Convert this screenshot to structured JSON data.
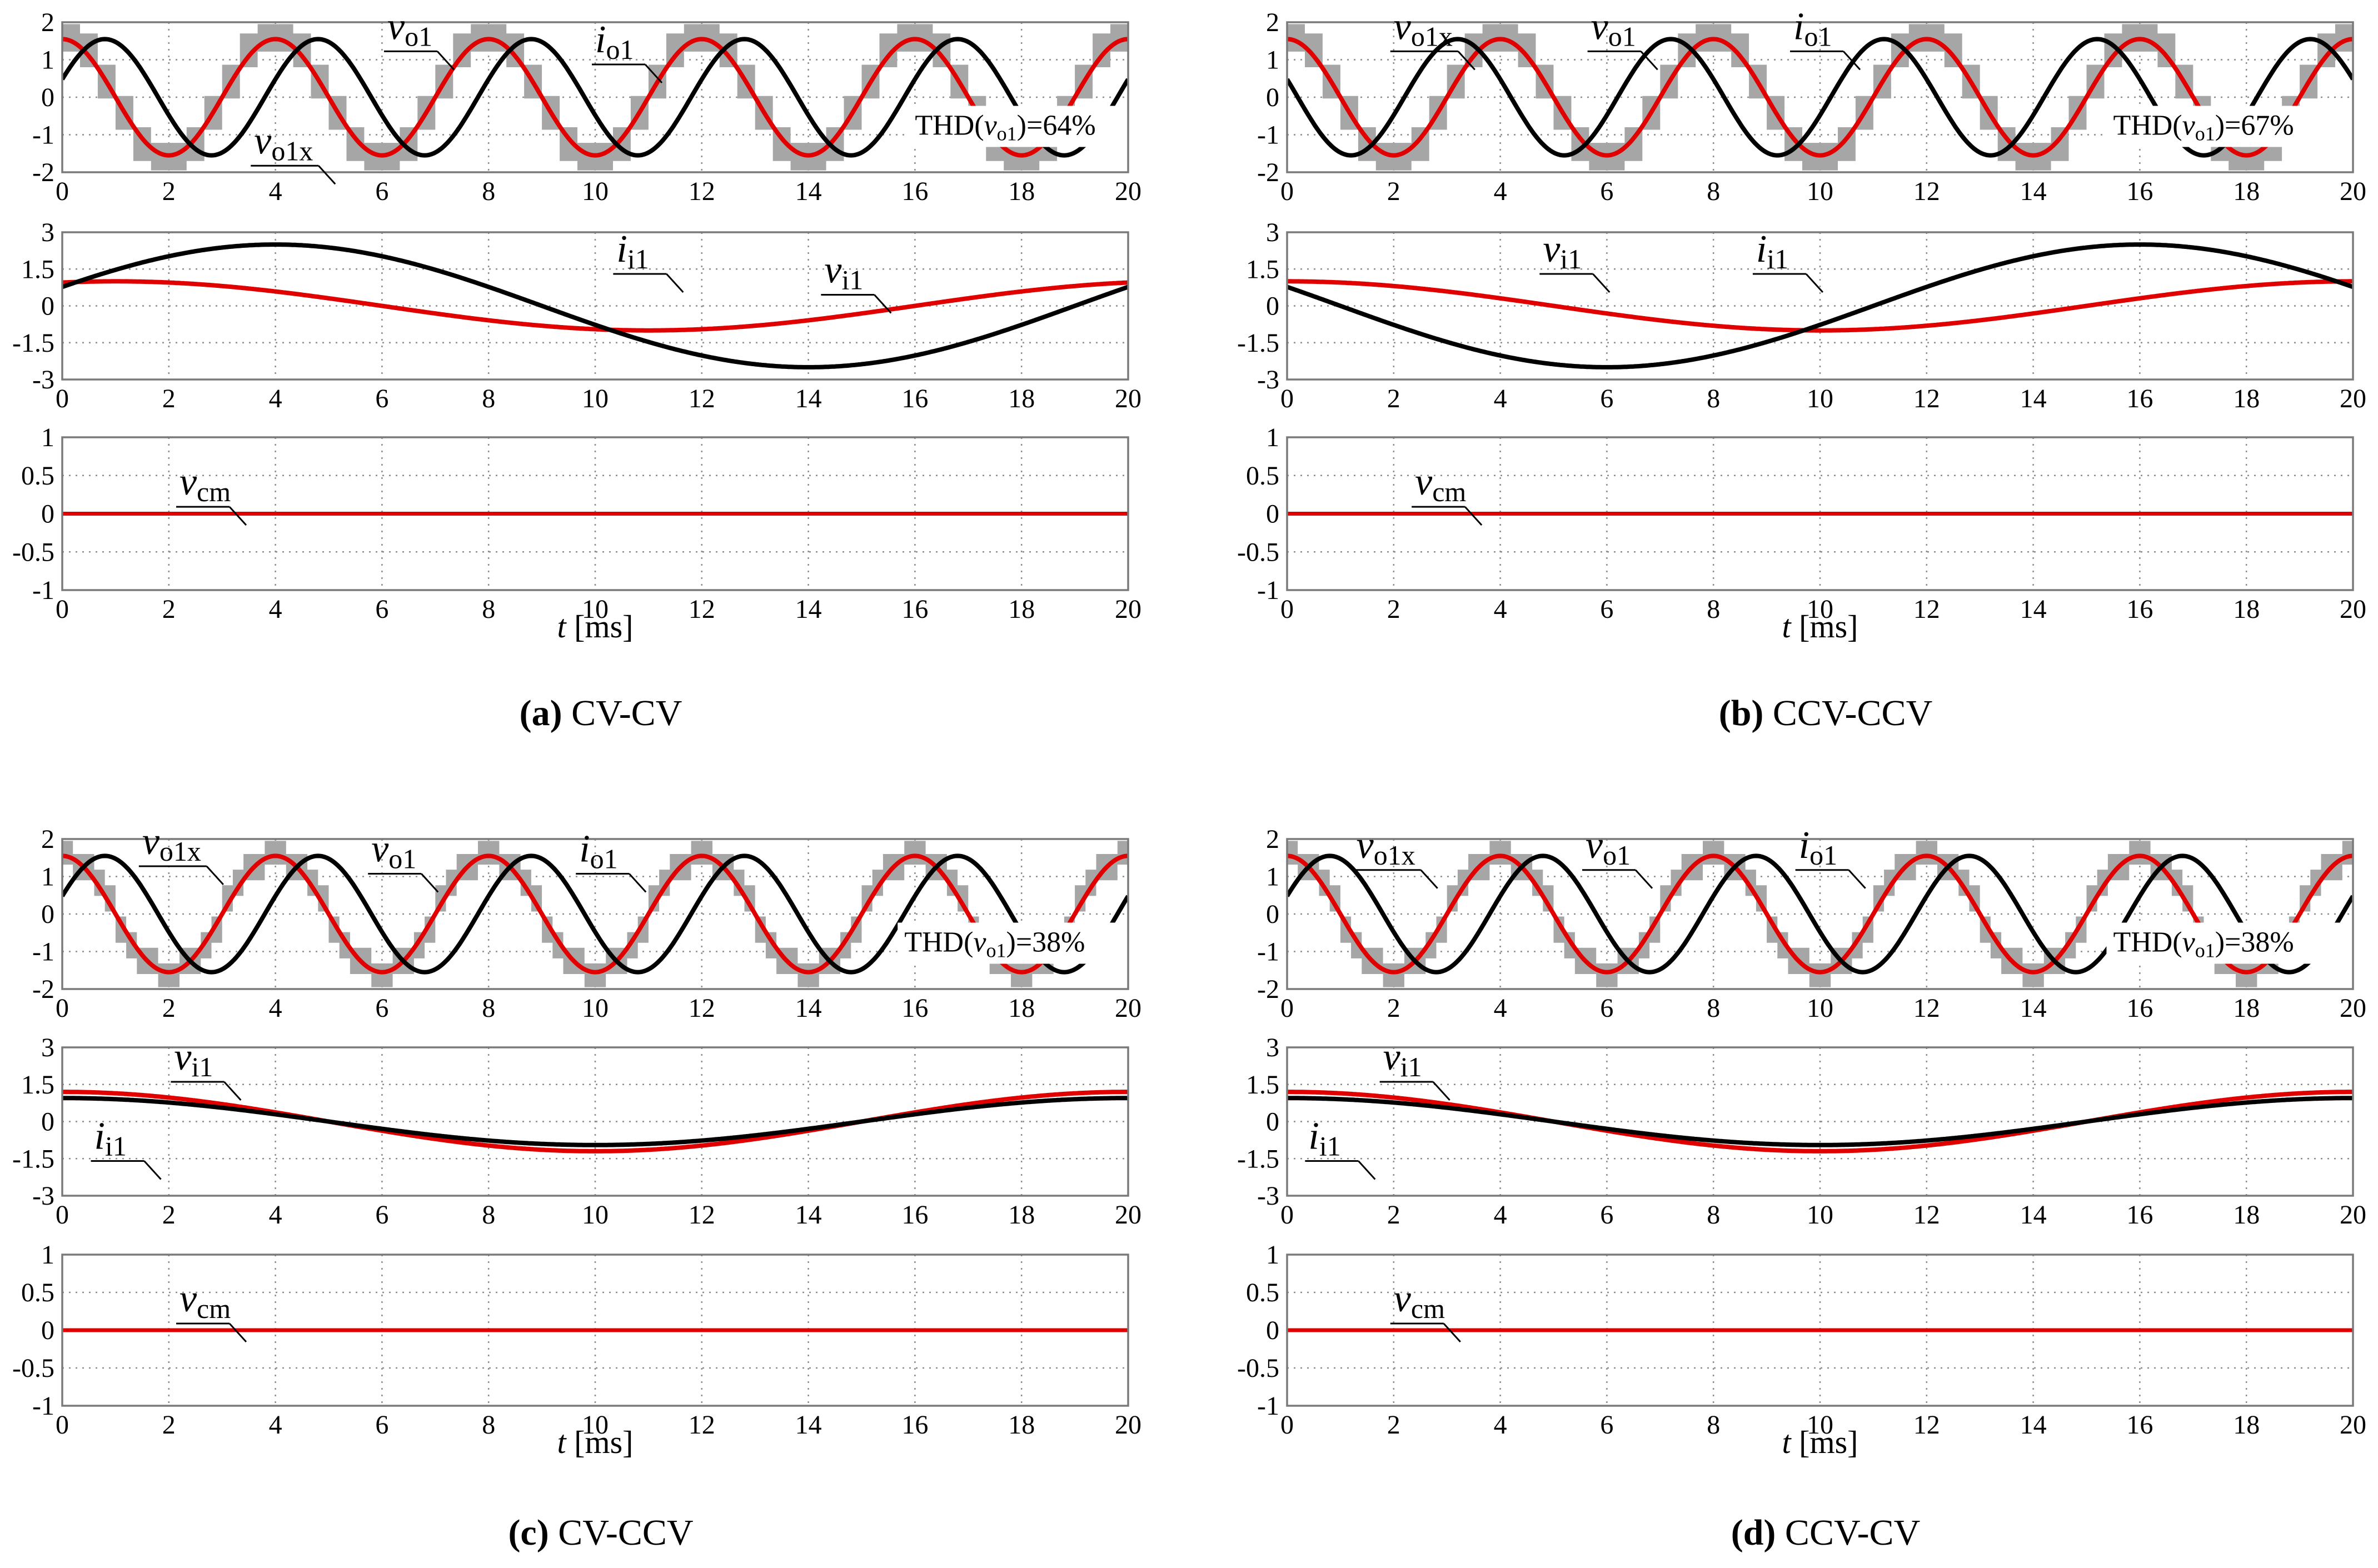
{
  "chart_data": [
    {
      "type": "line",
      "caption_letter": "(a)",
      "caption_text": "CV-CV",
      "x_unit": "ms",
      "xlabel_var": "t",
      "xlabel_unit": "[ms]",
      "x_ticks": [
        "0",
        "2",
        "4",
        "6",
        "8",
        "10",
        "12",
        "14",
        "16",
        "18",
        "20"
      ],
      "xlim": [
        0,
        20
      ],
      "panels": [
        {
          "name": "output",
          "ylim": [
            -2,
            2
          ],
          "y_ticks": [
            "2",
            "1",
            "0",
            "-1",
            "-2"
          ],
          "y_tick_values": [
            2,
            1,
            0,
            -1,
            -2
          ],
          "gray_band": {
            "name": "v_o1x",
            "frequency_hz": 250,
            "amplitude": 1.55,
            "phase_deg": 90,
            "band_halfwidth": 0.45,
            "steps": 12
          },
          "series": [
            {
              "name": "v_o1",
              "color": "#e00000",
              "amplitude": 1.55,
              "frequency_hz": 250,
              "phase_deg": 90
            },
            {
              "name": "i_o1",
              "color": "#000000",
              "amplitude": 1.55,
              "frequency_hz": 250,
              "phase_deg": 18
            }
          ],
          "labels": [
            {
              "main": "v",
              "sub": "o1",
              "x": 6.1,
              "y": 1.55
            },
            {
              "main": "i",
              "sub": "o1",
              "x": 10.0,
              "y": 1.2
            },
            {
              "main": "v",
              "sub": "o1x",
              "x": 3.6,
              "y": -1.5
            }
          ],
          "annotation": {
            "text": "THD(",
            "var": "v",
            "sub": "o1",
            "tail": ")=64%",
            "x": 16.0,
            "y": -1.0
          }
        },
        {
          "name": "input",
          "ylim": [
            -3,
            3
          ],
          "y_ticks": [
            "3",
            "1.5",
            "0",
            "-1.5",
            "-3"
          ],
          "y_tick_values": [
            3,
            1.5,
            0,
            -1.5,
            -3
          ],
          "series": [
            {
              "name": "v_i1",
              "color": "#e00000",
              "amplitude": 1.0,
              "frequency_hz": 50,
              "phase_deg": 72
            },
            {
              "name": "i_i1",
              "color": "#000000",
              "amplitude": 2.5,
              "frequency_hz": 50,
              "phase_deg": 18
            }
          ],
          "labels": [
            {
              "main": "i",
              "sub": "i1",
              "x": 10.4,
              "y": 1.8
            },
            {
              "main": "v",
              "sub": "i1",
              "x": 14.3,
              "y": 0.95
            }
          ]
        },
        {
          "name": "common_mode",
          "ylim": [
            -1,
            1
          ],
          "y_ticks": [
            "1",
            "0.5",
            "0",
            "-0.5",
            "-1"
          ],
          "y_tick_values": [
            1,
            0.5,
            0,
            -0.5,
            -1
          ],
          "series": [
            {
              "name": "v_cm",
              "color": "#e00000",
              "amplitude": 0,
              "frequency_hz": 50,
              "phase_deg": 0
            }
          ],
          "labels": [
            {
              "main": "v",
              "sub": "cm",
              "x": 2.2,
              "y": 0.25
            }
          ]
        }
      ]
    },
    {
      "type": "line",
      "caption_letter": "(b)",
      "caption_text": "CCV-CCV",
      "x_unit": "ms",
      "xlabel_var": "t",
      "xlabel_unit": "[ms]",
      "x_ticks": [
        "0",
        "2",
        "4",
        "6",
        "8",
        "10",
        "12",
        "14",
        "16",
        "18",
        "20"
      ],
      "xlim": [
        0,
        20
      ],
      "panels": [
        {
          "name": "output",
          "ylim": [
            -2,
            2
          ],
          "y_ticks": [
            "2",
            "1",
            "0",
            "-1",
            "-2"
          ],
          "y_tick_values": [
            2,
            1,
            0,
            -1,
            -2
          ],
          "gray_band": {
            "name": "v_o1x",
            "frequency_hz": 250,
            "amplitude": 1.55,
            "phase_deg": 90,
            "band_halfwidth": 0.45,
            "steps": 12
          },
          "series": [
            {
              "name": "v_o1",
              "color": "#e00000",
              "amplitude": 1.55,
              "frequency_hz": 250,
              "phase_deg": 90
            },
            {
              "name": "i_o1",
              "color": "#000000",
              "amplitude": 1.55,
              "frequency_hz": 250,
              "phase_deg": 162
            }
          ],
          "labels": [
            {
              "main": "v",
              "sub": "o1x",
              "x": 2.0,
              "y": 1.55
            },
            {
              "main": "v",
              "sub": "o1",
              "x": 5.7,
              "y": 1.55
            },
            {
              "main": "i",
              "sub": "o1",
              "x": 9.5,
              "y": 1.55
            }
          ],
          "annotation": {
            "text": "THD(",
            "var": "v",
            "sub": "o1",
            "tail": ")=67%",
            "x": 15.5,
            "y": -1.0
          }
        },
        {
          "name": "input",
          "ylim": [
            -3,
            3
          ],
          "y_ticks": [
            "3",
            "1.5",
            "0",
            "-1.5",
            "-3"
          ],
          "y_tick_values": [
            3,
            1.5,
            0,
            -1.5,
            -3
          ],
          "series": [
            {
              "name": "v_i1",
              "color": "#e00000",
              "amplitude": 1.0,
              "frequency_hz": 50,
              "phase_deg": 90
            },
            {
              "name": "i_i1",
              "color": "#000000",
              "amplitude": 2.5,
              "frequency_hz": 50,
              "phase_deg": 162
            }
          ],
          "labels": [
            {
              "main": "v",
              "sub": "i1",
              "x": 4.8,
              "y": 1.8
            },
            {
              "main": "i",
              "sub": "i1",
              "x": 8.8,
              "y": 1.8
            }
          ]
        },
        {
          "name": "common_mode",
          "ylim": [
            -1,
            1
          ],
          "y_ticks": [
            "1",
            "0.5",
            "0",
            "-0.5",
            "-1"
          ],
          "y_tick_values": [
            1,
            0.5,
            0,
            -0.5,
            -1
          ],
          "series": [
            {
              "name": "v_cm",
              "color": "#e00000",
              "amplitude": 0,
              "frequency_hz": 50,
              "phase_deg": 0
            }
          ],
          "labels": [
            {
              "main": "v",
              "sub": "cm",
              "x": 2.4,
              "y": 0.25
            }
          ]
        }
      ]
    },
    {
      "type": "line",
      "caption_letter": "(c)",
      "caption_text": "CV-CCV",
      "x_unit": "ms",
      "xlabel_var": "t",
      "xlabel_unit": "[ms]",
      "x_ticks": [
        "0",
        "2",
        "4",
        "6",
        "8",
        "10",
        "12",
        "14",
        "16",
        "18",
        "20"
      ],
      "xlim": [
        0,
        20
      ],
      "panels": [
        {
          "name": "output",
          "ylim": [
            -2,
            2
          ],
          "y_ticks": [
            "2",
            "1",
            "0",
            "-1",
            "-2"
          ],
          "y_tick_values": [
            2,
            1,
            0,
            -1,
            -2
          ],
          "gray_band": {
            "name": "v_o1x",
            "frequency_hz": 250,
            "amplitude": 1.55,
            "phase_deg": 90,
            "band_halfwidth": 0.35,
            "steps": 20
          },
          "series": [
            {
              "name": "v_o1",
              "color": "#e00000",
              "amplitude": 1.55,
              "frequency_hz": 250,
              "phase_deg": 90
            },
            {
              "name": "i_o1",
              "color": "#000000",
              "amplitude": 1.55,
              "frequency_hz": 250,
              "phase_deg": 18
            }
          ],
          "labels": [
            {
              "main": "v",
              "sub": "o1x",
              "x": 1.5,
              "y": 1.6
            },
            {
              "main": "v",
              "sub": "o1",
              "x": 5.8,
              "y": 1.4
            },
            {
              "main": "i",
              "sub": "o1",
              "x": 9.7,
              "y": 1.4
            }
          ],
          "annotation": {
            "text": "THD(",
            "var": "v",
            "sub": "o1",
            "tail": ")=38%",
            "x": 15.8,
            "y": -1.0
          }
        },
        {
          "name": "input",
          "ylim": [
            -3,
            3
          ],
          "y_ticks": [
            "3",
            "1.5",
            "0",
            "-1.5",
            "-3"
          ],
          "y_tick_values": [
            3,
            1.5,
            0,
            -1.5,
            -3
          ],
          "series": [
            {
              "name": "v_i1",
              "color": "#e00000",
              "amplitude": 1.2,
              "frequency_hz": 50,
              "phase_deg": 90
            },
            {
              "name": "i_i1",
              "color": "#000000",
              "amplitude": 0.95,
              "frequency_hz": 50,
              "phase_deg": 90
            }
          ],
          "labels": [
            {
              "main": "v",
              "sub": "i1",
              "x": 2.1,
              "y": 2.1
            },
            {
              "main": "i",
              "sub": "i1",
              "x": 0.6,
              "y": -1.1
            }
          ]
        },
        {
          "name": "common_mode",
          "ylim": [
            -1,
            1
          ],
          "y_ticks": [
            "1",
            "0.5",
            "0",
            "-0.5",
            "-1"
          ],
          "y_tick_values": [
            1,
            0.5,
            0,
            -0.5,
            -1
          ],
          "series": [
            {
              "name": "v_cm",
              "color": "#e00000",
              "amplitude": 0,
              "frequency_hz": 50,
              "phase_deg": 0
            }
          ],
          "labels": [
            {
              "main": "v",
              "sub": "cm",
              "x": 2.2,
              "y": 0.25
            }
          ]
        }
      ]
    },
    {
      "type": "line",
      "caption_letter": "(d)",
      "caption_text": "CCV-CV",
      "x_unit": "ms",
      "xlabel_var": "t",
      "xlabel_unit": "[ms]",
      "x_ticks": [
        "0",
        "2",
        "4",
        "6",
        "8",
        "10",
        "12",
        "14",
        "16",
        "18",
        "20"
      ],
      "xlim": [
        0,
        20
      ],
      "panels": [
        {
          "name": "output",
          "ylim": [
            -2,
            2
          ],
          "y_ticks": [
            "2",
            "1",
            "0",
            "-1",
            "-2"
          ],
          "y_tick_values": [
            2,
            1,
            0,
            -1,
            -2
          ],
          "gray_band": {
            "name": "v_o1x",
            "frequency_hz": 250,
            "amplitude": 1.55,
            "phase_deg": 90,
            "band_halfwidth": 0.35,
            "steps": 20
          },
          "series": [
            {
              "name": "v_o1",
              "color": "#e00000",
              "amplitude": 1.55,
              "frequency_hz": 250,
              "phase_deg": 90
            },
            {
              "name": "i_o1",
              "color": "#000000",
              "amplitude": 1.55,
              "frequency_hz": 250,
              "phase_deg": 18
            }
          ],
          "labels": [
            {
              "main": "v",
              "sub": "o1x",
              "x": 1.3,
              "y": 1.5
            },
            {
              "main": "v",
              "sub": "o1",
              "x": 5.6,
              "y": 1.5
            },
            {
              "main": "i",
              "sub": "o1",
              "x": 9.6,
              "y": 1.5
            }
          ],
          "annotation": {
            "text": "THD(",
            "var": "v",
            "sub": "o1",
            "tail": ")=38%",
            "x": 15.5,
            "y": -1.0
          }
        },
        {
          "name": "input",
          "ylim": [
            -3,
            3
          ],
          "y_ticks": [
            "3",
            "1.5",
            "0",
            "-1.5",
            "-3"
          ],
          "y_tick_values": [
            3,
            1.5,
            0,
            -1.5,
            -3
          ],
          "series": [
            {
              "name": "v_i1",
              "color": "#e00000",
              "amplitude": 1.2,
              "frequency_hz": 50,
              "phase_deg": 90
            },
            {
              "name": "i_i1",
              "color": "#000000",
              "amplitude": 0.95,
              "frequency_hz": 50,
              "phase_deg": 90
            }
          ],
          "labels": [
            {
              "main": "v",
              "sub": "i1",
              "x": 1.8,
              "y": 2.1
            },
            {
              "main": "i",
              "sub": "i1",
              "x": 0.4,
              "y": -1.1
            }
          ]
        },
        {
          "name": "common_mode",
          "ylim": [
            -1,
            1
          ],
          "y_ticks": [
            "1",
            "0.5",
            "0",
            "-0.5",
            "-1"
          ],
          "y_tick_values": [
            1,
            0.5,
            0,
            -0.5,
            -1
          ],
          "series": [
            {
              "name": "v_cm",
              "color": "#e00000",
              "amplitude": 0,
              "frequency_hz": 50,
              "phase_deg": 0
            }
          ],
          "labels": [
            {
              "main": "v",
              "sub": "cm",
              "x": 2.0,
              "y": 0.25
            }
          ]
        }
      ]
    }
  ]
}
